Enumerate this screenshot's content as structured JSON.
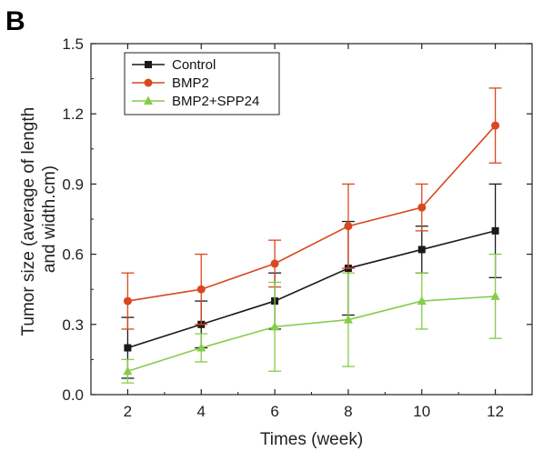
{
  "panel_label": "B",
  "chart_data": {
    "type": "line",
    "title": "",
    "xlabel": "Times (week)",
    "ylabel_lines": [
      "Tumor size (average of length",
      "and width.cm)"
    ],
    "x": [
      2,
      4,
      6,
      8,
      10,
      12
    ],
    "x_ticks": [
      "2",
      "4",
      "6",
      "8",
      "10",
      "12"
    ],
    "xlim": [
      1,
      13
    ],
    "ylim": [
      0,
      1.5
    ],
    "y_ticks": [
      "0.0",
      "0.3",
      "0.6",
      "0.9",
      "1.2",
      "1.5"
    ],
    "y_tick_values": [
      0,
      0.3,
      0.6,
      0.9,
      1.2,
      1.5
    ],
    "grid": false,
    "legend_position": "top-left",
    "series": [
      {
        "name": "Control",
        "color": "#1a1a1a",
        "marker": "square",
        "values": [
          0.2,
          0.3,
          0.4,
          0.54,
          0.62,
          0.7
        ],
        "errors": [
          0.13,
          0.1,
          0.12,
          0.2,
          0.1,
          0.2
        ]
      },
      {
        "name": "BMP2",
        "color": "#d9481f",
        "marker": "circle",
        "values": [
          0.4,
          0.45,
          0.56,
          0.72,
          0.8,
          1.15
        ],
        "errors": [
          0.12,
          0.15,
          0.1,
          0.18,
          0.1,
          0.16
        ]
      },
      {
        "name": "BMP2+SPP24",
        "color": "#86cc4a",
        "marker": "triangle",
        "values": [
          0.1,
          0.2,
          0.29,
          0.32,
          0.4,
          0.42
        ],
        "errors": [
          0.05,
          0.06,
          0.19,
          0.2,
          0.12,
          0.18
        ]
      }
    ]
  }
}
